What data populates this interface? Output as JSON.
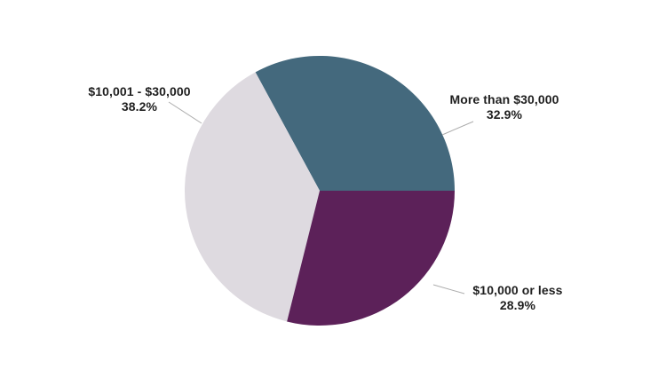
{
  "chart_data": {
    "type": "pie",
    "title": "",
    "legend_position": "none",
    "labels_outside": true,
    "start_angle_deg": 0,
    "direction": "counterclockwise",
    "slices": [
      {
        "label": "More than $30,000",
        "pct_label": "32.9%",
        "value": 32.9,
        "color": "#44697D"
      },
      {
        "label": "$10,001 - $30,000",
        "pct_label": "38.2%",
        "value": 38.2,
        "color": "#DEDAE0"
      },
      {
        "label": "$10,000 or less",
        "pct_label": "28.9%",
        "value": 28.9,
        "color": "#5C2159"
      }
    ]
  },
  "colors": {
    "background": "#FFFFFF",
    "leader_line": "#ADADAD",
    "label_text": "#1F1F1F"
  }
}
